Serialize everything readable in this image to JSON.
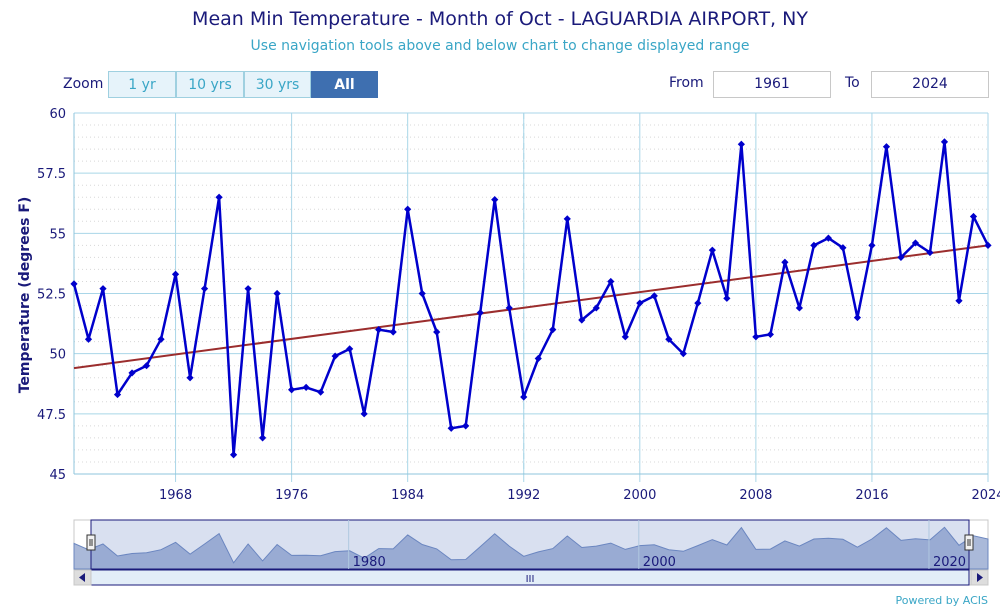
{
  "chart": {
    "title": "Mean Min Temperature - Month of Oct - LAGUARDIA AIRPORT, NY",
    "subtitle": "Use navigation tools above and below chart to change displayed range"
  },
  "controls": {
    "zoom_label": "Zoom",
    "zoom_buttons": [
      "1 yr",
      "10 yrs",
      "30 yrs",
      "All"
    ],
    "active_zoom": "All",
    "from_label": "From",
    "from_value": "1961",
    "to_label": "To",
    "to_value": "2024"
  },
  "navigator": {
    "labels": [
      "1980",
      "2000",
      "2020"
    ],
    "scroll_grip": "III"
  },
  "credit": "Powered by ACIS",
  "colors": {
    "series": "#0000cc",
    "trend": "#9b2d2d",
    "grid": "#a9d6e8",
    "text": "#1a1a7a",
    "accent": "#3aa6c6",
    "navigator_fill": "#8ea2cc"
  },
  "chart_data": {
    "type": "line",
    "ylabel": "Temperature (degrees F)",
    "xlim": [
      1961,
      2024
    ],
    "ylim": [
      45,
      60
    ],
    "yticks": [
      45,
      47.5,
      50,
      52.5,
      55,
      57.5,
      60
    ],
    "ytick_labels": [
      "45",
      "47.5",
      "50",
      "52.5",
      "55",
      "57.5",
      "60"
    ],
    "xticks": [
      1968,
      1976,
      1984,
      1992,
      2000,
      2008,
      2016,
      2024
    ],
    "xtick_labels": [
      "1968",
      "1976",
      "1984",
      "1992",
      "2000",
      "2008",
      "2016",
      "2024"
    ],
    "x": [
      1961,
      1962,
      1963,
      1964,
      1965,
      1966,
      1967,
      1968,
      1969,
      1970,
      1971,
      1972,
      1973,
      1974,
      1975,
      1976,
      1977,
      1978,
      1979,
      1980,
      1981,
      1982,
      1983,
      1984,
      1985,
      1986,
      1987,
      1988,
      1989,
      1990,
      1991,
      1992,
      1993,
      1994,
      1995,
      1996,
      1997,
      1998,
      1999,
      2000,
      2001,
      2002,
      2003,
      2004,
      2005,
      2006,
      2007,
      2008,
      2009,
      2010,
      2011,
      2012,
      2013,
      2014,
      2015,
      2016,
      2017,
      2018,
      2019,
      2020,
      2021,
      2022,
      2023,
      2024
    ],
    "series": [
      {
        "values": [
          52.9,
          50.6,
          52.7,
          48.3,
          49.2,
          49.5,
          50.6,
          53.3,
          49.0,
          52.7,
          56.5,
          45.8,
          52.7,
          46.5,
          52.5,
          48.5,
          48.6,
          48.4,
          49.9,
          50.2,
          47.5,
          51.0,
          50.9,
          56.0,
          52.5,
          50.9,
          46.9,
          47.0,
          51.7,
          56.4,
          51.9,
          48.2,
          49.8,
          51.0,
          55.6,
          51.4,
          51.9,
          53.0,
          50.7,
          52.1,
          52.4,
          50.6,
          50.0,
          52.1,
          54.3,
          52.3,
          58.7,
          50.7,
          50.8,
          53.8,
          51.9,
          54.5,
          54.8,
          54.4,
          51.5,
          54.5,
          58.6,
          54.0,
          54.6,
          54.2,
          58.8,
          52.2,
          55.7,
          54.5
        ]
      }
    ],
    "trend": {
      "values": [
        49.4,
        54.5
      ]
    },
    "grid": true
  }
}
